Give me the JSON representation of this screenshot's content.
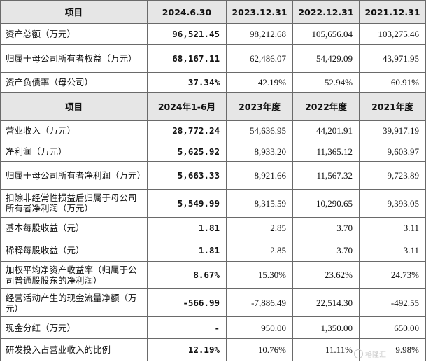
{
  "table": {
    "balance_header": [
      "项目",
      "2024.6.30",
      "2023.12.31",
      "2022.12.31",
      "2021.12.31"
    ],
    "balance_rows": [
      {
        "label": "资产总额（万元）",
        "values": [
          "96,521.45",
          "98,212.68",
          "105,656.04",
          "103,275.46"
        ]
      },
      {
        "label": "归属于母公司所有者权益（万元）",
        "values": [
          "68,167.11",
          "62,486.07",
          "54,429.09",
          "43,971.95"
        ]
      },
      {
        "label": "资产负债率（母公司）",
        "values": [
          "37.34%",
          "42.19%",
          "52.94%",
          "60.91%"
        ]
      }
    ],
    "income_header": [
      "项目",
      "2024年1-6月",
      "2023年度",
      "2022年度",
      "2021年度"
    ],
    "income_rows": [
      {
        "label": "营业收入（万元）",
        "values": [
          "28,772.24",
          "54,636.95",
          "44,201.91",
          "39,917.19"
        ]
      },
      {
        "label": "净利润（万元）",
        "values": [
          "5,625.92",
          "8,933.20",
          "11,365.12",
          "9,603.97"
        ]
      },
      {
        "label": "归属于母公司所有者净利润（万元）",
        "values": [
          "5,663.33",
          "8,921.66",
          "11,567.32",
          "9,723.89"
        ]
      },
      {
        "label": "扣除非经常性损益后归属于母公司所有者净利润（万元）",
        "values": [
          "5,549.99",
          "8,315.59",
          "10,290.65",
          "9,393.05"
        ]
      },
      {
        "label": "基本每股收益（元）",
        "values": [
          "1.81",
          "2.85",
          "3.70",
          "3.11"
        ]
      },
      {
        "label": "稀释每股收益（元）",
        "values": [
          "1.81",
          "2.85",
          "3.70",
          "3.11"
        ]
      },
      {
        "label": "加权平均净资产收益率（归属于公司普通股股东的净利润）",
        "values": [
          "8.67%",
          "15.30%",
          "23.62%",
          "24.73%"
        ]
      },
      {
        "label": "经营活动产生的现金流量净额（万元）",
        "values": [
          "-566.99",
          "-7,886.49",
          "22,514.30",
          "-492.55"
        ]
      },
      {
        "label": "现金分红（万元）",
        "values": [
          "-",
          "950.00",
          "1,350.00",
          "650.00"
        ]
      },
      {
        "label": "研发投入占营业收入的比例",
        "values": [
          "12.19%",
          "10.76%",
          "11.11%",
          "9.98%"
        ]
      }
    ]
  },
  "watermark": {
    "text": "格隆汇",
    "icon": "gelonghui-logo-icon"
  }
}
